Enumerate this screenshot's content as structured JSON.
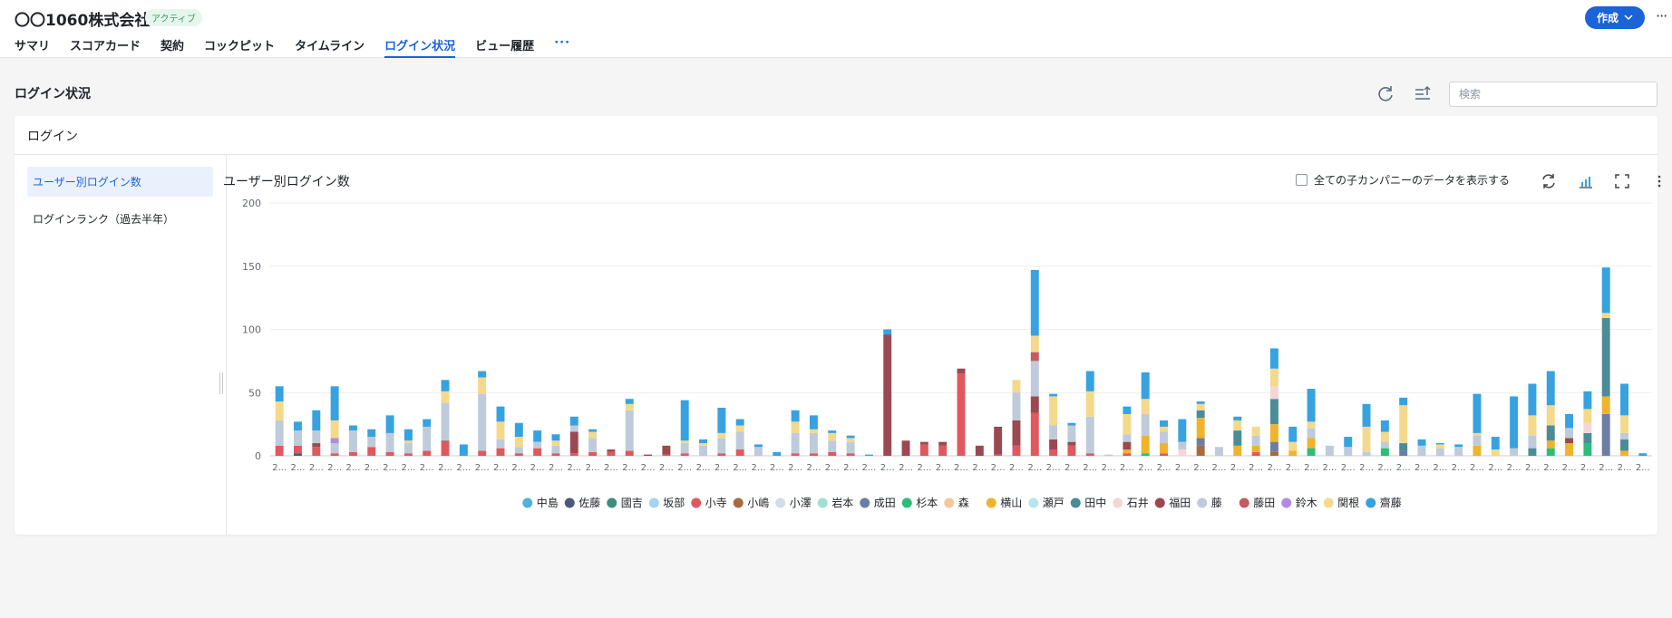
{
  "header": {
    "company_name": "〇〇1060株式会社",
    "status_badge": "アクティブ",
    "create_button": "作成",
    "more_label": "···"
  },
  "tabs": [
    {
      "label": "サマリ"
    },
    {
      "label": "スコアカード"
    },
    {
      "label": "契約"
    },
    {
      "label": "コックピット"
    },
    {
      "label": "タイムライン"
    },
    {
      "label": "ログイン状況"
    },
    {
      "label": "ビュー履歴"
    },
    {
      "label": "···"
    }
  ],
  "active_tab": "ログイン状況",
  "section": {
    "title": "ログイン状況",
    "search_placeholder": "検索"
  },
  "card": {
    "title": "ログイン",
    "sidebar": [
      {
        "label": "ユーザー別ログイン数"
      },
      {
        "label": "ログインランク（過去半年）"
      }
    ],
    "chart_title": "ユーザー別ログイン数",
    "checkbox_label": "全ての子カンパニーのデータを表示する"
  },
  "chart_data": {
    "type": "bar",
    "stacked": true,
    "ylim": [
      0,
      200
    ],
    "yticks": [
      0,
      50,
      100,
      150,
      200
    ],
    "x_tick_label": "2...",
    "grid": true,
    "legend_position": "bottom",
    "series": [
      {
        "name": "中島",
        "color": "#4fb3d9"
      },
      {
        "name": "佐藤",
        "color": "#4a5a78"
      },
      {
        "name": "國吉",
        "color": "#3f8f7c"
      },
      {
        "name": "坂部",
        "color": "#a5d3f0"
      },
      {
        "name": "小寺",
        "color": "#e0585f"
      },
      {
        "name": "小嶋",
        "color": "#a86a3d"
      },
      {
        "name": "小澤",
        "color": "#d3dbe8"
      },
      {
        "name": "岩本",
        "color": "#a3dfd0"
      },
      {
        "name": "成田",
        "color": "#6c7ea3"
      },
      {
        "name": "杉本",
        "color": "#2dbd78"
      },
      {
        "name": "森",
        "color": "#f5c89a"
      },
      {
        "name": "横山",
        "color": "#efb42c"
      },
      {
        "name": "瀬戸",
        "color": "#b7e4f0"
      },
      {
        "name": "田中",
        "color": "#4b8c98"
      },
      {
        "name": "石井",
        "color": "#f6d5d5"
      },
      {
        "name": "福田",
        "color": "#9b4950"
      },
      {
        "name": "藤",
        "color": "#bfcbdb"
      },
      {
        "name": "藤田",
        "color": "#c55a62"
      },
      {
        "name": "鈴木",
        "color": "#b28ae3"
      },
      {
        "name": "関根",
        "color": "#f4d98c"
      },
      {
        "name": "齋藤",
        "color": "#37a2e0"
      }
    ],
    "bars": [
      {
        "x": "2...",
        "segments": {
          "小寺": 8,
          "藤": 20,
          "関根": 15,
          "齋藤": 12
        }
      },
      {
        "x": "2...",
        "segments": {
          "小寺": 6,
          "佐藤": 2,
          "藤": 12,
          "齋藤": 7
        }
      },
      {
        "x": "2...",
        "segments": {
          "小寺": 7,
          "福田": 3,
          "藤": 10,
          "齋藤": 16
        }
      },
      {
        "x": "2...",
        "segments": {
          "小寺": 2,
          "藤": 8,
          "鈴木": 4,
          "関根": 14,
          "齋藤": 27
        }
      },
      {
        "x": "2...",
        "segments": {
          "小寺": 3,
          "藤": 17,
          "齋藤": 4
        }
      },
      {
        "x": "2...",
        "segments": {
          "小寺": 7,
          "藤": 8,
          "齋藤": 6
        }
      },
      {
        "x": "2...",
        "segments": {
          "小寺": 3,
          "藤": 15,
          "齋藤": 14
        }
      },
      {
        "x": "2...",
        "segments": {
          "小寺": 2,
          "藤": 8,
          "関根": 2,
          "齋藤": 9
        }
      },
      {
        "x": "2...",
        "segments": {
          "小寺": 4,
          "藤": 19,
          "齋藤": 6
        }
      },
      {
        "x": "2...",
        "segments": {
          "小寺": 11,
          "福田": 1,
          "藤": 30,
          "関根": 9,
          "齋藤": 9
        }
      },
      {
        "x": "2...",
        "segments": {
          "齋藤": 9
        }
      },
      {
        "x": "2...",
        "segments": {
          "小寺": 4,
          "藤": 45,
          "関根": 13,
          "齋藤": 5
        }
      },
      {
        "x": "2...",
        "segments": {
          "小寺": 6,
          "藤": 7,
          "関根": 14,
          "齋藤": 12
        }
      },
      {
        "x": "2...",
        "segments": {
          "小寺": 2,
          "藤": 5,
          "関根": 8,
          "齋藤": 11
        }
      },
      {
        "x": "2...",
        "segments": {
          "小寺": 6,
          "藤": 5,
          "齋藤": 9
        }
      },
      {
        "x": "2...",
        "segments": {
          "小寺": 2,
          "藤": 6,
          "関根": 4,
          "齋藤": 5
        }
      },
      {
        "x": "2...",
        "segments": {
          "小寺": 2,
          "福田": 17,
          "藤": 5,
          "齋藤": 7
        }
      },
      {
        "x": "2...",
        "segments": {
          "小寺": 3,
          "藤": 11,
          "関根": 5,
          "齋藤": 2
        }
      },
      {
        "x": "2...",
        "segments": {
          "小寺": 3,
          "福田": 2
        }
      },
      {
        "x": "2...",
        "segments": {
          "小寺": 4,
          "藤": 32,
          "関根": 5,
          "齋藤": 4
        }
      },
      {
        "x": "2...",
        "segments": {
          "福田": 1
        }
      },
      {
        "x": "2...",
        "segments": {
          "小寺": 1,
          "福田": 7
        }
      },
      {
        "x": "2...",
        "segments": {
          "小寺": 2,
          "藤": 8,
          "関根": 2,
          "齋藤": 32
        }
      },
      {
        "x": "2...",
        "segments": {
          "藤": 8,
          "関根": 2,
          "齋藤": 3
        }
      },
      {
        "x": "2...",
        "segments": {
          "小寺": 2,
          "藤": 12,
          "関根": 4,
          "齋藤": 20
        }
      },
      {
        "x": "2...",
        "segments": {
          "小寺": 5,
          "藤": 14,
          "関根": 5,
          "齋藤": 5
        }
      },
      {
        "x": "2...",
        "segments": {
          "藤": 7,
          "齋藤": 2
        }
      },
      {
        "x": "2...",
        "segments": {
          "齋藤": 3
        }
      },
      {
        "x": "2...",
        "segments": {
          "小寺": 2,
          "藤": 16,
          "関根": 9,
          "齋藤": 9
        }
      },
      {
        "x": "2...",
        "segments": {
          "小寺": 2,
          "藤": 16,
          "関根": 3,
          "齋藤": 11
        }
      },
      {
        "x": "2...",
        "segments": {
          "小寺": 3,
          "藤": 9,
          "関根": 6,
          "齋藤": 2
        }
      },
      {
        "x": "2...",
        "segments": {
          "小寺": 2,
          "藤": 9,
          "関根": 3,
          "齋藤": 2
        }
      },
      {
        "x": "2...",
        "segments": {
          "齋藤": 1
        }
      },
      {
        "x": "2...",
        "segments": {
          "福田": 96,
          "齋藤": 4
        }
      },
      {
        "x": "2...",
        "segments": {
          "福田": 12
        }
      },
      {
        "x": "2...",
        "segments": {
          "小寺": 9,
          "福田": 2
        }
      },
      {
        "x": "2...",
        "segments": {
          "小寺": 8,
          "福田": 3
        }
      },
      {
        "x": "2...",
        "segments": {
          "小寺": 65,
          "福田": 4
        }
      },
      {
        "x": "2...",
        "segments": {
          "福田": 8
        }
      },
      {
        "x": "2...",
        "segments": {
          "小寺": 1,
          "福田": 22
        }
      },
      {
        "x": "2...",
        "segments": {
          "小寺": 8,
          "福田": 20,
          "藤": 22,
          "関根": 10
        }
      },
      {
        "x": "2...",
        "segments": {
          "小寺": 34,
          "福田": 13,
          "藤田": 7,
          "藤": 28,
          "関根": 13,
          "齋藤": 52
        }
      },
      {
        "x": "2...",
        "segments": {
          "小寺": 5,
          "福田": 8,
          "藤": 11,
          "関根": 23,
          "齋藤": 2
        }
      },
      {
        "x": "2...",
        "segments": {
          "小寺": 8,
          "福田": 3,
          "藤": 13,
          "齋藤": 2
        }
      },
      {
        "x": "2...",
        "segments": {
          "小寺": 2,
          "藤": 29,
          "関根": 20,
          "齋藤": 16
        }
      },
      {
        "x": "2...",
        "segments": {
          "藤": 1
        }
      },
      {
        "x": "2...",
        "segments": {
          "小寺": 2,
          "横山": 3,
          "福田": 6,
          "藤": 6,
          "関根": 16,
          "齋藤": 6
        }
      },
      {
        "x": "2...",
        "segments": {
          "杉本": 2,
          "横山": 14,
          "藤": 17,
          "関根": 12,
          "齋藤": 21
        }
      },
      {
        "x": "2...",
        "segments": {
          "小寺": 2,
          "横山": 8,
          "藤": 9,
          "関根": 4,
          "齋藤": 5
        }
      },
      {
        "x": "2...",
        "segments": {
          "石井": 5,
          "藤": 6,
          "齋藤": 18
        }
      },
      {
        "x": "2...",
        "segments": {
          "小嶋": 8,
          "成田": 6,
          "田中": 6,
          "関根": 5,
          "横山": 16,
          "齋藤": 2
        }
      },
      {
        "x": "2...",
        "segments": {
          "藤": 7
        }
      },
      {
        "x": "2...",
        "segments": {
          "横山": 8,
          "田中": 12,
          "関根": 8,
          "齋藤": 3
        }
      },
      {
        "x": "2...",
        "segments": {
          "小寺": 3,
          "横山": 5,
          "藤": 8,
          "関根": 7
        }
      },
      {
        "x": "2...",
        "segments": {
          "小嶋": 3,
          "横山": 14,
          "成田": 8,
          "田中": 20,
          "石井": 10,
          "関根": 14,
          "齋藤": 16
        }
      },
      {
        "x": "2...",
        "segments": {
          "横山": 4,
          "関根": 7,
          "齋藤": 12
        }
      },
      {
        "x": "2...",
        "segments": {
          "杉本": 6,
          "藤": 8,
          "横山": 8,
          "関根": 5,
          "齋藤": 26
        }
      },
      {
        "x": "2...",
        "segments": {
          "藤": 8
        }
      },
      {
        "x": "2...",
        "segments": {
          "藤": 7,
          "齋藤": 8
        }
      },
      {
        "x": "2...",
        "segments": {
          "藤": 3,
          "関根": 20,
          "齋藤": 18
        }
      },
      {
        "x": "2...",
        "segments": {
          "杉本": 6,
          "藤": 5,
          "関根": 8,
          "齋藤": 9
        }
      },
      {
        "x": "2...",
        "segments": {
          "成田": 4,
          "田中": 6,
          "関根": 30,
          "齋藤": 6
        }
      },
      {
        "x": "2...",
        "segments": {
          "藤": 8,
          "齋藤": 5
        }
      },
      {
        "x": "2...",
        "segments": {
          "藤": 6,
          "関根": 3,
          "齋藤": 1
        }
      },
      {
        "x": "2...",
        "segments": {
          "藤": 7,
          "齋藤": 2
        }
      },
      {
        "x": "2...",
        "segments": {
          "横山": 8,
          "藤": 8,
          "関根": 2,
          "齋藤": 31
        }
      },
      {
        "x": "2...",
        "segments": {
          "関根": 5,
          "齋藤": 10
        }
      },
      {
        "x": "2...",
        "segments": {
          "藤": 6,
          "齋藤": 41
        }
      },
      {
        "x": "2...",
        "segments": {
          "田中": 6,
          "藤": 10,
          "関根": 16,
          "齋藤": 25
        }
      },
      {
        "x": "2...",
        "segments": {
          "杉本": 6,
          "横山": 6,
          "田中": 12,
          "関根": 16,
          "齋藤": 27
        }
      },
      {
        "x": "2...",
        "segments": {
          "横山": 10,
          "福田": 4,
          "藤": 8,
          "齋藤": 11
        }
      },
      {
        "x": "2...",
        "segments": {
          "杉本": 10,
          "田中": 8,
          "石井": 8,
          "関根": 11,
          "齋藤": 14
        }
      },
      {
        "x": "2...",
        "segments": {
          "成田": 33,
          "横山": 14,
          "田中": 62,
          "関根": 4,
          "齋藤": 36
        }
      },
      {
        "x": "2...",
        "segments": {
          "藤": 5,
          "横山": 4,
          "田中": 9,
          "関根": 14,
          "齋藤": 25
        }
      },
      {
        "x": "2...",
        "segments": {
          "齋藤": 2
        }
      }
    ]
  }
}
